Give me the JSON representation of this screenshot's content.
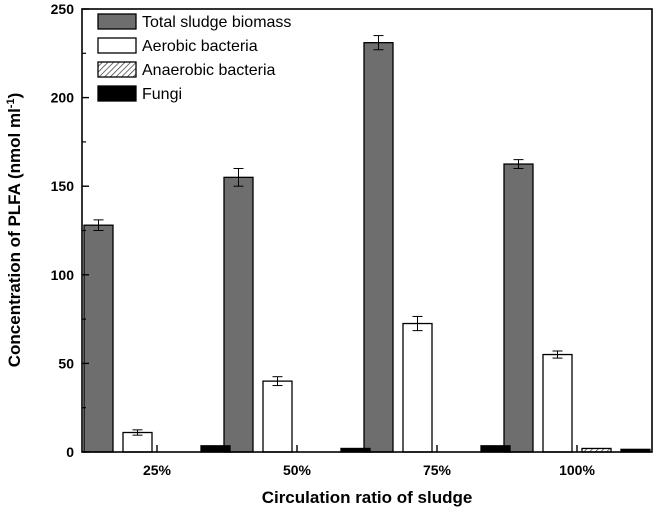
{
  "chart_data": {
    "type": "bar",
    "categories": [
      "25%",
      "50%",
      "75%",
      "100%"
    ],
    "xlabel": "Circulation ratio of sludge",
    "ylabel": "Concentration of PLFA (nmol ml",
    "ylabel_sup": "-1",
    "ylabel_close": ")",
    "ylim": [
      0,
      250
    ],
    "yticks": [
      "0",
      "50",
      "100",
      "150",
      "200",
      "250"
    ],
    "legend_position": "top-left",
    "series": [
      {
        "name": "Total sludge biomass",
        "values": [
          128,
          155,
          231,
          162.5
        ],
        "errors": [
          3,
          5,
          4,
          2.5
        ],
        "color": "#6e6e6e",
        "pattern": "solid"
      },
      {
        "name": "Aerobic bacteria",
        "values": [
          11,
          40,
          72.5,
          55
        ],
        "errors": [
          1.5,
          2.5,
          4,
          2
        ],
        "color": "#ffffff",
        "pattern": "solid"
      },
      {
        "name": "Anaerobic bacteria",
        "values": [
          0,
          0,
          0,
          2
        ],
        "errors": [
          0,
          0,
          0,
          0
        ],
        "color": "#ffffff",
        "pattern": "hatch"
      },
      {
        "name": "Fungi",
        "values": [
          3.5,
          2,
          3.5,
          1.5
        ],
        "errors": [
          0,
          0,
          0,
          0
        ],
        "color": "#000000",
        "pattern": "solid"
      }
    ]
  }
}
